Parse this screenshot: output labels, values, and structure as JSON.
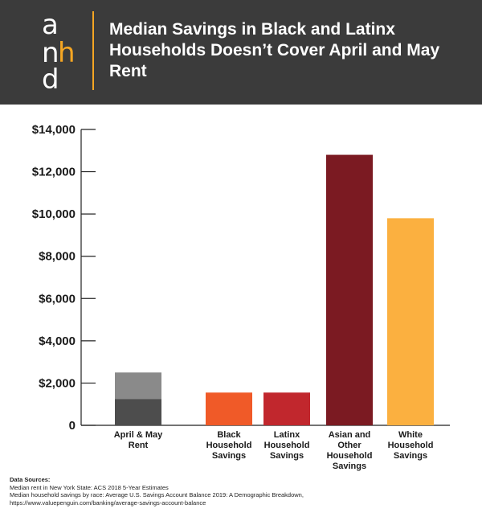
{
  "header": {
    "logo_letters": [
      "a",
      "n",
      "h",
      "d"
    ],
    "title": "Median Savings in Black and Latinx Households Doesn’t Cover April and May Rent"
  },
  "chart_data": {
    "type": "bar",
    "title": "Median Savings in Black and Latinx Households Doesn’t Cover April and May Rent",
    "xlabel": "",
    "ylabel": "",
    "ylim": [
      0,
      14000
    ],
    "yticks": [
      "$14,000",
      "$12,000",
      "$10,000",
      "$8,000",
      "$6,000",
      "$4,000",
      "$2,000",
      "0"
    ],
    "ytick_values": [
      14000,
      12000,
      10000,
      8000,
      6000,
      4000,
      2000,
      0
    ],
    "grid": false,
    "legend": "none",
    "categories": [
      [
        "April & May",
        "Rent"
      ],
      [
        "Black",
        "Household",
        "Savings"
      ],
      [
        "Latinx",
        "Household",
        "Savings"
      ],
      [
        "Asian and",
        "Other",
        "Household",
        "Savings"
      ],
      [
        "White",
        "Household",
        "Savings"
      ]
    ],
    "bars": [
      {
        "stack": [
          {
            "value": 1250,
            "color": "#4d4d4d"
          },
          {
            "value": 1250,
            "color": "#8a8a8a"
          }
        ]
      },
      {
        "stack": [
          {
            "value": 1550,
            "color": "#f05a28"
          }
        ]
      },
      {
        "stack": [
          {
            "value": 1550,
            "color": "#c1272d"
          }
        ]
      },
      {
        "stack": [
          {
            "value": 12800,
            "color": "#7b1a22"
          }
        ]
      },
      {
        "stack": [
          {
            "value": 9800,
            "color": "#fbb040"
          }
        ]
      }
    ]
  },
  "sources": {
    "heading": "Data Sources:",
    "lines": [
      "Median rent in New York State: ACS 2018 5-Year Estimates",
      "Median household savings by race: Average U.S. Savings Account Balance 2019: A Demographic Breakdown,",
      "https://www.valuepenguin.com/banking/average-savings-account-balance"
    ]
  }
}
